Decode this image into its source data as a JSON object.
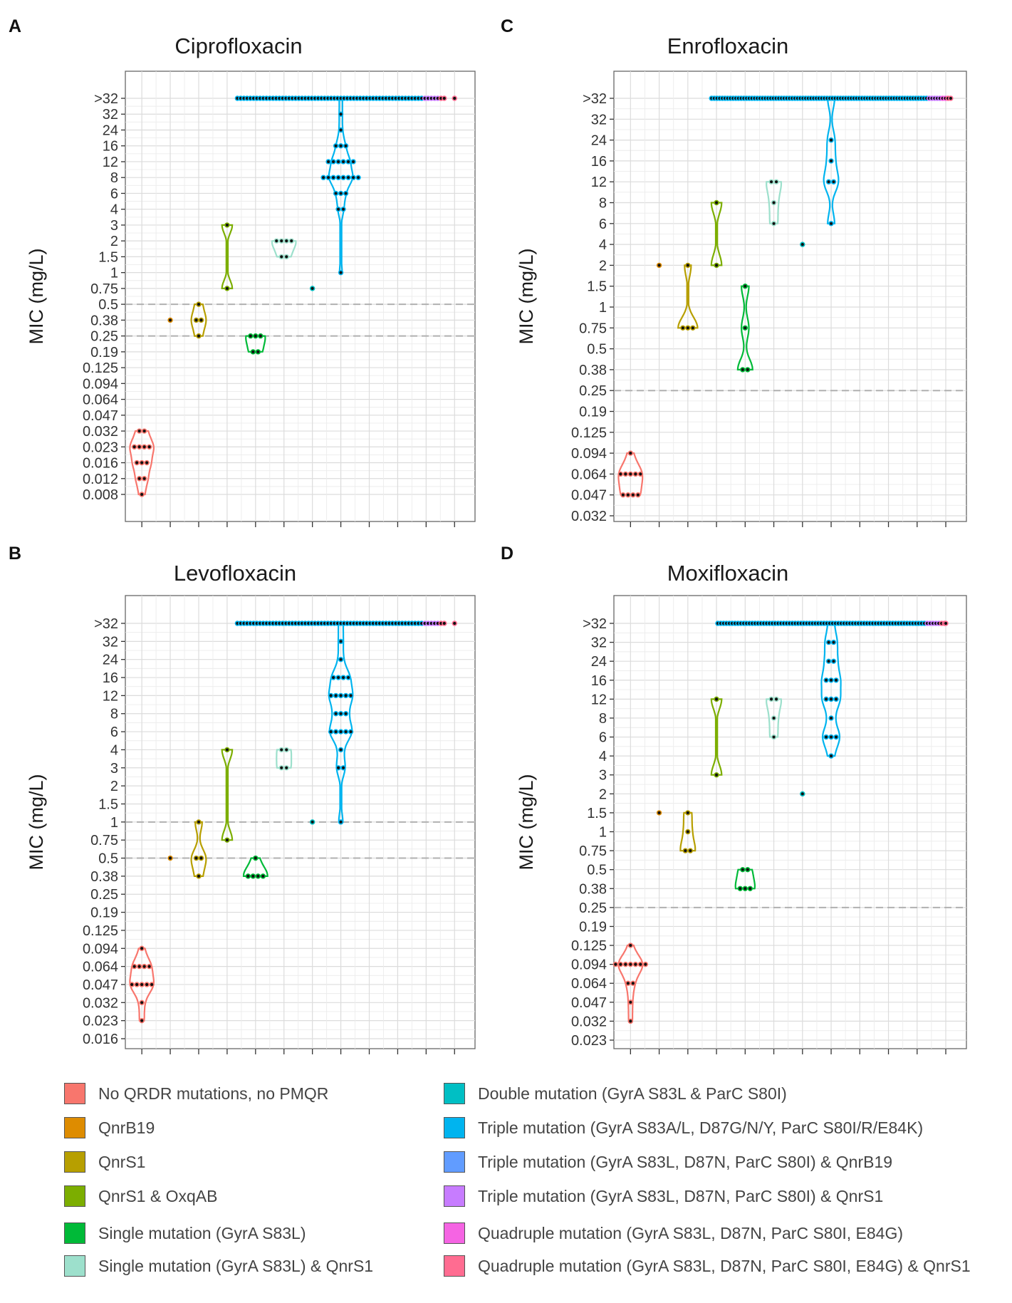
{
  "legend": [
    {
      "label": "No QRDR mutations, no PMQR",
      "color": "#F8766D"
    },
    {
      "label": "QnrB19",
      "color": "#DE8C00"
    },
    {
      "label": "QnrS1",
      "color": "#B79F00"
    },
    {
      "label": "QnrS1 & OxqAB",
      "color": "#7CAE00"
    },
    {
      "label": "Single mutation (GyrA S83L)",
      "color": "#00BA38"
    },
    {
      "label": "Single mutation (GyrA S83L) & QnrS1",
      "color": "#9DE0CC"
    },
    {
      "label": "Double mutation (GyrA S83L & ParC S80I)",
      "color": "#00BFC4"
    },
    {
      "label": "Triple mutation (GyrA S83A/L, D87G/N/Y, ParC S80I/R/E84K)",
      "color": "#00B4EF"
    },
    {
      "label": "Triple mutation (GyrA S83L, D87N, ParC S80I) & QnrB19",
      "color": "#619CFF"
    },
    {
      "label": "Triple mutation (GyrA S83L, D87N, ParC S80I) & QnrS1",
      "color": "#C77CFF"
    },
    {
      "label": "Quadruple mutation (GyrA S83L, D87N, ParC S80I, E84G)",
      "color": "#F564E3"
    },
    {
      "label": "Quadruple mutation (GyrA S83L, D87N, ParC S80I, E84G) & QnrS1",
      "color": "#FF6C91"
    }
  ],
  "chart_data": [
    {
      "panel": "A",
      "type": "violin-dotplot",
      "title": "Ciprofloxacin",
      "ylabel": "MIC (mg/L)",
      "xlabel": "",
      "y_ticks": [
        "0.008",
        "0.012",
        "0.016",
        "0.023",
        "0.032",
        "0.047",
        "0.064",
        "0.094",
        "0.125",
        "0.19",
        "0.25",
        "0.38",
        "0.5",
        "0.75",
        "1",
        "1.5",
        "2",
        "3",
        "4",
        "6",
        "8",
        "12",
        "16",
        "24",
        "32",
        ">32"
      ],
      "breakpoints": [
        "0.25",
        "0.5"
      ],
      "groups": [
        {
          "values": [
            "0.008",
            "0.012",
            "0.012",
            "0.016",
            "0.016",
            "0.016",
            "0.023",
            "0.023",
            "0.023",
            "0.023",
            "0.032",
            "0.032"
          ]
        },
        {
          "values": [
            "0.38"
          ]
        },
        {
          "values": [
            "0.25",
            "0.38",
            "0.38",
            "0.5"
          ]
        },
        {
          "values": [
            "0.75",
            "3"
          ]
        },
        {
          "values": [
            "0.19",
            "0.19",
            "0.25",
            "0.25",
            "0.25"
          ]
        },
        {
          "values": [
            "1.5",
            "1.5",
            "2",
            "2",
            "2",
            "2"
          ]
        },
        {
          "values": [
            "0.75"
          ]
        },
        {
          "values": [
            "1",
            "4",
            "4",
            "6",
            "6",
            "6",
            "8",
            "8",
            "8",
            "8",
            "8",
            "8",
            "8",
            "8",
            "12",
            "12",
            "12",
            "12",
            "12",
            "12",
            "16",
            "16",
            "16",
            "24",
            "32",
            ">32"
          ],
          "over_count": 65,
          "extra": [
            {
              "n": 5,
              "legend_index": 9
            },
            {
              "n": 2,
              "legend_index": 11
            }
          ]
        },
        {
          "values": []
        },
        {
          "values": []
        },
        {
          "values": []
        },
        {
          "values": [
            ">32"
          ]
        }
      ]
    },
    {
      "panel": "B",
      "type": "violin-dotplot",
      "title": "Levofloxacin",
      "ylabel": "MIC (mg/L)",
      "xlabel": "",
      "y_ticks": [
        "0.016",
        "0.023",
        "0.032",
        "0.047",
        "0.064",
        "0.094",
        "0.125",
        "0.19",
        "0.25",
        "0.38",
        "0.5",
        "0.75",
        "1",
        "1.5",
        "2",
        "3",
        "4",
        "6",
        "8",
        "12",
        "16",
        "24",
        "32",
        ">32"
      ],
      "breakpoints": [
        "0.5",
        "1"
      ],
      "groups": [
        {
          "values": [
            "0.023",
            "0.032",
            "0.047",
            "0.047",
            "0.047",
            "0.047",
            "0.047",
            "0.064",
            "0.064",
            "0.064",
            "0.064",
            "0.094"
          ]
        },
        {
          "values": [
            "0.5"
          ]
        },
        {
          "values": [
            "0.38",
            "0.5",
            "0.5",
            "1"
          ]
        },
        {
          "values": [
            "0.75",
            "4"
          ]
        },
        {
          "values": [
            "0.38",
            "0.38",
            "0.38",
            "0.38",
            "0.5"
          ]
        },
        {
          "values": [
            "3",
            "3",
            "4",
            "4"
          ]
        },
        {
          "values": [
            "1"
          ]
        },
        {
          "values": [
            "1",
            "3",
            "3",
            "4",
            "6",
            "6",
            "6",
            "6",
            "6",
            "8",
            "8",
            "8",
            "12",
            "12",
            "12",
            "12",
            "12",
            "16",
            "16",
            "16",
            "16",
            "24",
            "32",
            ">32"
          ],
          "over_count": 65,
          "extra": [
            {
              "n": 5,
              "legend_index": 9
            },
            {
              "n": 2,
              "legend_index": 11
            }
          ]
        },
        {
          "values": []
        },
        {
          "values": []
        },
        {
          "values": []
        },
        {
          "values": [
            ">32"
          ]
        }
      ]
    },
    {
      "panel": "C",
      "type": "violin-dotplot",
      "title": "Enrofloxacin",
      "ylabel": "MIC (mg/L)",
      "xlabel": "",
      "y_ticks": [
        "0.032",
        "0.047",
        "0.064",
        "0.094",
        "0.125",
        "0.19",
        "0.25",
        "0.38",
        "0.5",
        "0.75",
        "1",
        "1.5",
        "2",
        "4",
        "6",
        "8",
        "12",
        "16",
        "24",
        "32",
        ">32"
      ],
      "breakpoints": [
        "0.25"
      ],
      "groups": [
        {
          "values": [
            "0.047",
            "0.047",
            "0.047",
            "0.047",
            "0.064",
            "0.064",
            "0.064",
            "0.064",
            "0.064",
            "0.094"
          ]
        },
        {
          "values": [
            "2"
          ]
        },
        {
          "values": [
            "0.75",
            "0.75",
            "0.75",
            "2"
          ]
        },
        {
          "values": [
            "2",
            "8"
          ]
        },
        {
          "values": [
            "0.38",
            "0.38",
            "0.75",
            "1.5"
          ]
        },
        {
          "values": [
            "6",
            "8",
            "12",
            "12"
          ]
        },
        {
          "values": [
            "4"
          ]
        },
        {
          "values": [
            "6",
            "12",
            "12",
            "16",
            "24",
            ">32"
          ],
          "over_count": 90,
          "extra": [
            {
              "n": 5,
              "legend_index": 9
            },
            {
              "n": 2,
              "legend_index": 10
            },
            {
              "n": 2,
              "legend_index": 11
            }
          ]
        },
        {
          "values": []
        },
        {
          "values": []
        },
        {
          "values": []
        },
        {
          "values": []
        }
      ]
    },
    {
      "panel": "D",
      "type": "violin-dotplot",
      "title": "Moxifloxacin",
      "ylabel": "MIC (mg/L)",
      "xlabel": "",
      "y_ticks": [
        "0.023",
        "0.032",
        "0.047",
        "0.064",
        "0.094",
        "0.125",
        "0.19",
        "0.25",
        "0.38",
        "0.5",
        "0.75",
        "1",
        "1.5",
        "2",
        "3",
        "4",
        "6",
        "8",
        "12",
        "16",
        "24",
        "32",
        ">32"
      ],
      "breakpoints": [
        "0.25"
      ],
      "groups": [
        {
          "values": [
            "0.032",
            "0.047",
            "0.064",
            "0.064",
            "0.094",
            "0.094",
            "0.094",
            "0.094",
            "0.094",
            "0.094",
            "0.094",
            "0.125"
          ]
        },
        {
          "values": [
            "1.5"
          ]
        },
        {
          "values": [
            "0.75",
            "0.75",
            "1",
            "1.5"
          ]
        },
        {
          "values": [
            "3",
            "12"
          ]
        },
        {
          "values": [
            "0.38",
            "0.38",
            "0.38",
            "0.5",
            "0.5"
          ]
        },
        {
          "values": [
            "6",
            "8",
            "12",
            "12"
          ]
        },
        {
          "values": [
            "2"
          ]
        },
        {
          "values": [
            "4",
            "6",
            "6",
            "6",
            "8",
            "12",
            "12",
            "12",
            "16",
            "16",
            "16",
            "24",
            "24",
            "32",
            "32",
            ">32"
          ],
          "over_count": 80,
          "extra": [
            {
              "n": 5,
              "legend_index": 9
            },
            {
              "n": 2,
              "legend_index": 11
            }
          ]
        },
        {
          "values": []
        },
        {
          "values": []
        },
        {
          "values": []
        },
        {
          "values": [
            ">32"
          ]
        }
      ]
    }
  ]
}
